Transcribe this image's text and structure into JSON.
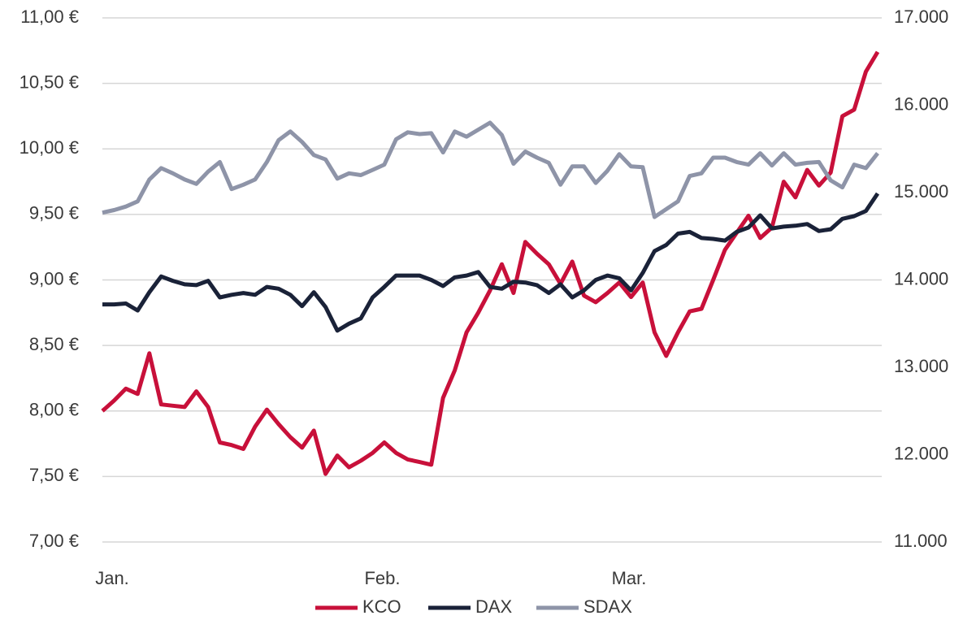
{
  "chart_data": {
    "type": "line",
    "categories": [
      "Jan.",
      null,
      null,
      null,
      null,
      null,
      null,
      null,
      null,
      null,
      null,
      null,
      null,
      null,
      null,
      null,
      null,
      null,
      null,
      null,
      null,
      null,
      null,
      "Feb.",
      null,
      null,
      null,
      null,
      null,
      null,
      null,
      null,
      null,
      null,
      null,
      null,
      null,
      null,
      null,
      null,
      null,
      null,
      null,
      null,
      "Mar.",
      null,
      null,
      null,
      null,
      null,
      null,
      null,
      null,
      null,
      null,
      null,
      null,
      null,
      null,
      null,
      null,
      null,
      null,
      null,
      null,
      null,
      null
    ],
    "series": [
      {
        "name": "KCO",
        "color": "#c8103a",
        "axis": "y",
        "values": [
          8.0,
          8.08,
          8.17,
          8.13,
          8.44,
          8.05,
          8.04,
          8.03,
          8.15,
          8.03,
          7.76,
          7.74,
          7.71,
          7.88,
          8.01,
          7.9,
          7.8,
          7.72,
          7.85,
          7.52,
          7.66,
          7.57,
          7.62,
          7.68,
          7.76,
          7.68,
          7.63,
          7.61,
          7.59,
          8.1,
          8.31,
          8.6,
          8.75,
          8.92,
          9.12,
          8.9,
          9.29,
          9.2,
          9.12,
          8.97,
          9.14,
          8.88,
          8.83,
          8.9,
          8.98,
          8.87,
          8.98,
          8.6,
          8.42,
          8.6,
          8.76,
          8.78,
          9.0,
          9.23,
          9.36,
          9.49,
          9.32,
          9.4,
          9.75,
          9.63,
          9.84,
          9.72,
          9.82,
          10.25,
          10.3,
          10.59,
          10.74
        ]
      },
      {
        "name": "DAX",
        "color": "#1a2238",
        "axis": "y2",
        "values": [
          13720,
          13720,
          13730,
          13650,
          13860,
          14040,
          13990,
          13950,
          13940,
          13990,
          13800,
          13830,
          13850,
          13830,
          13920,
          13900,
          13830,
          13700,
          13860,
          13690,
          13420,
          13500,
          13560,
          13800,
          13920,
          14050,
          14050,
          14050,
          14000,
          13930,
          14030,
          14050,
          14090,
          13920,
          13900,
          13980,
          13970,
          13940,
          13850,
          13950,
          13800,
          13880,
          14000,
          14050,
          14020,
          13880,
          14080,
          14330,
          14400,
          14530,
          14550,
          14480,
          14470,
          14450,
          14550,
          14600,
          14740,
          14590,
          14610,
          14620,
          14640,
          14560,
          14580,
          14700,
          14730,
          14790,
          14990
        ]
      },
      {
        "name": "SDAX",
        "color": "#8e94a8",
        "axis": "y2",
        "values": [
          14770,
          14800,
          14840,
          14900,
          15150,
          15280,
          15220,
          15150,
          15100,
          15240,
          15350,
          15040,
          15090,
          15150,
          15350,
          15600,
          15700,
          15580,
          15430,
          15380,
          15160,
          15220,
          15200,
          15260,
          15320,
          15610,
          15690,
          15670,
          15680,
          15460,
          15700,
          15640,
          15720,
          15800,
          15660,
          15330,
          15470,
          15400,
          15340,
          15090,
          15300,
          15300,
          15110,
          15250,
          15440,
          15300,
          15290,
          14720,
          14810,
          14900,
          15190,
          15220,
          15400,
          15400,
          15350,
          15320,
          15450,
          15310,
          15450,
          15320,
          15340,
          15350,
          15140,
          15060,
          15320,
          15280,
          15450
        ]
      }
    ],
    "ylim": [
      7,
      11
    ],
    "yticks": [
      {
        "value": 7,
        "label": "7,00 €"
      },
      {
        "value": 7.5,
        "label": "7,50 €"
      },
      {
        "value": 8,
        "label": "8,00 €"
      },
      {
        "value": 8.5,
        "label": "8,50 €"
      },
      {
        "value": 9,
        "label": "9,00 €"
      },
      {
        "value": 9.5,
        "label": "9,50 €"
      },
      {
        "value": 10,
        "label": "10,00 €"
      },
      {
        "value": 10.5,
        "label": "10,50 €"
      },
      {
        "value": 11,
        "label": "11,00 €"
      }
    ],
    "y2lim": [
      11000,
      17000
    ],
    "y2ticks": [
      {
        "value": 11000,
        "label": "11.000"
      },
      {
        "value": 12000,
        "label": "12.000"
      },
      {
        "value": 13000,
        "label": "13.000"
      },
      {
        "value": 14000,
        "label": "14.000"
      },
      {
        "value": 15000,
        "label": "15.000"
      },
      {
        "value": 16000,
        "label": "16.000"
      },
      {
        "value": 17000,
        "label": "17.000"
      }
    ],
    "grid": true,
    "legend": "bottom"
  }
}
